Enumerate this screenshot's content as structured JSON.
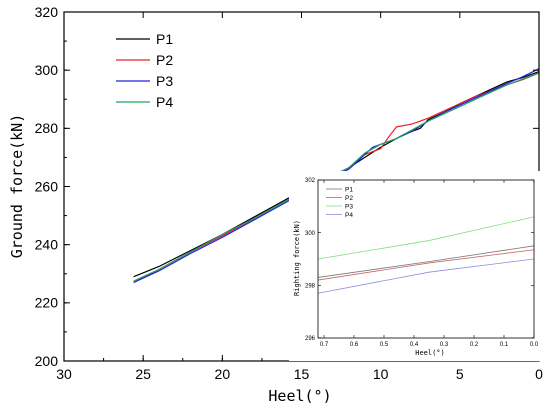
{
  "chart_data": [
    {
      "type": "line",
      "title": "",
      "xlabel": "Heel(°)",
      "ylabel": "Ground force(kN)",
      "xlim": [
        30,
        0
      ],
      "ylim": [
        200,
        320
      ],
      "x_ticks": [
        30,
        25,
        20,
        15,
        10,
        5,
        0
      ],
      "y_ticks": [
        200,
        220,
        240,
        260,
        280,
        300,
        320
      ],
      "grid": false,
      "legend_position": "top-left",
      "series": [
        {
          "name": "P1",
          "color": "#000000",
          "points": [
            [
              25.6,
              229.0
            ],
            [
              24.0,
              232.5
            ],
            [
              22.0,
              238.0
            ],
            [
              20.0,
              243.5
            ],
            [
              18.0,
              249.5
            ],
            [
              16.0,
              255.5
            ],
            [
              14.0,
              261.0
            ],
            [
              12.0,
              266.5
            ],
            [
              11.0,
              270.0
            ],
            [
              10.0,
              273.5
            ],
            [
              9.0,
              276.5
            ],
            [
              8.5,
              278.0
            ],
            [
              7.5,
              280.0
            ],
            [
              7.0,
              283.0
            ],
            [
              6.0,
              285.5
            ],
            [
              5.0,
              288.5
            ],
            [
              4.0,
              291.0
            ],
            [
              3.0,
              293.5
            ],
            [
              2.0,
              296.0
            ],
            [
              1.0,
              297.5
            ],
            [
              0.0,
              299.5
            ]
          ]
        },
        {
          "name": "P2",
          "color": "#e8202a",
          "points": [
            [
              25.6,
              227.0
            ],
            [
              24.0,
              231.5
            ],
            [
              22.0,
              237.5
            ],
            [
              20.0,
              243.0
            ],
            [
              18.0,
              249.0
            ],
            [
              16.0,
              255.0
            ],
            [
              14.0,
              261.0
            ],
            [
              12.0,
              266.5
            ],
            [
              11.0,
              271.0
            ],
            [
              10.0,
              273.0
            ],
            [
              9.5,
              277.0
            ],
            [
              9.0,
              280.5
            ],
            [
              8.0,
              281.5
            ],
            [
              7.0,
              283.5
            ],
            [
              6.0,
              286.0
            ],
            [
              5.0,
              288.5
            ],
            [
              4.0,
              291.0
            ],
            [
              3.0,
              293.0
            ],
            [
              2.0,
              295.0
            ],
            [
              1.0,
              296.8
            ],
            [
              0.0,
              299.0
            ]
          ]
        },
        {
          "name": "P3",
          "color": "#2020e0",
          "points": [
            [
              25.6,
              227.0
            ],
            [
              24.0,
              231.0
            ],
            [
              22.0,
              237.0
            ],
            [
              20.0,
              242.5
            ],
            [
              18.0,
              248.5
            ],
            [
              16.0,
              254.5
            ],
            [
              14.0,
              260.5
            ],
            [
              12.0,
              266.0
            ],
            [
              10.5,
              273.5
            ],
            [
              9.0,
              276.5
            ],
            [
              8.0,
              279.0
            ],
            [
              7.0,
              282.5
            ],
            [
              6.0,
              285.5
            ],
            [
              5.0,
              288.0
            ],
            [
              4.0,
              290.5
            ],
            [
              3.0,
              293.0
            ],
            [
              2.0,
              295.5
            ],
            [
              1.0,
              297.8
            ],
            [
              0.0,
              300.5
            ]
          ]
        },
        {
          "name": "P4",
          "color": "#20a060",
          "points": [
            [
              25.6,
              227.5
            ],
            [
              24.0,
              231.5
            ],
            [
              22.0,
              237.5
            ],
            [
              20.0,
              243.5
            ],
            [
              18.0,
              249.0
            ],
            [
              16.0,
              255.0
            ],
            [
              14.0,
              261.0
            ],
            [
              12.0,
              266.5
            ],
            [
              11.0,
              271.5
            ],
            [
              10.0,
              274.5
            ],
            [
              9.0,
              276.5
            ],
            [
              8.0,
              279.5
            ],
            [
              7.0,
              282.5
            ],
            [
              6.0,
              285.0
            ],
            [
              5.0,
              287.5
            ],
            [
              4.0,
              290.0
            ],
            [
              3.0,
              292.5
            ],
            [
              2.0,
              295.0
            ],
            [
              1.0,
              297.0
            ],
            [
              0.0,
              299.0
            ]
          ]
        }
      ]
    },
    {
      "type": "line",
      "title": "",
      "xlabel": "Heel(°)",
      "ylabel": "Righting force(kN)",
      "xlim": [
        0.72,
        0.0
      ],
      "ylim": [
        296,
        302
      ],
      "x_ticks": [
        0.7,
        0.6,
        0.5,
        0.4,
        0.3,
        0.2,
        0.1,
        0.0
      ],
      "x_tick_labels": [
        "0.7",
        "0.6",
        "0.5",
        "0.4",
        "0.3",
        "0.2",
        "0.1",
        "0.0"
      ],
      "y_ticks": [
        296,
        298,
        300,
        302
      ],
      "grid": false,
      "legend_position": "top-left",
      "series": [
        {
          "name": "P1",
          "color": "#777777",
          "points": [
            [
              0.72,
              298.3
            ],
            [
              0.35,
              298.9
            ],
            [
              0.0,
              299.5
            ]
          ]
        },
        {
          "name": "P2",
          "color": "#c86464",
          "points": [
            [
              0.72,
              298.2
            ],
            [
              0.35,
              298.85
            ],
            [
              0.0,
              299.35
            ]
          ]
        },
        {
          "name": "P3",
          "color": "#7ee07e",
          "points": [
            [
              0.72,
              299.0
            ],
            [
              0.35,
              299.7
            ],
            [
              0.0,
              300.6
            ]
          ]
        },
        {
          "name": "P4",
          "color": "#8c8ce0",
          "points": [
            [
              0.72,
              297.7
            ],
            [
              0.35,
              298.5
            ],
            [
              0.0,
              299.0
            ]
          ]
        }
      ]
    }
  ]
}
